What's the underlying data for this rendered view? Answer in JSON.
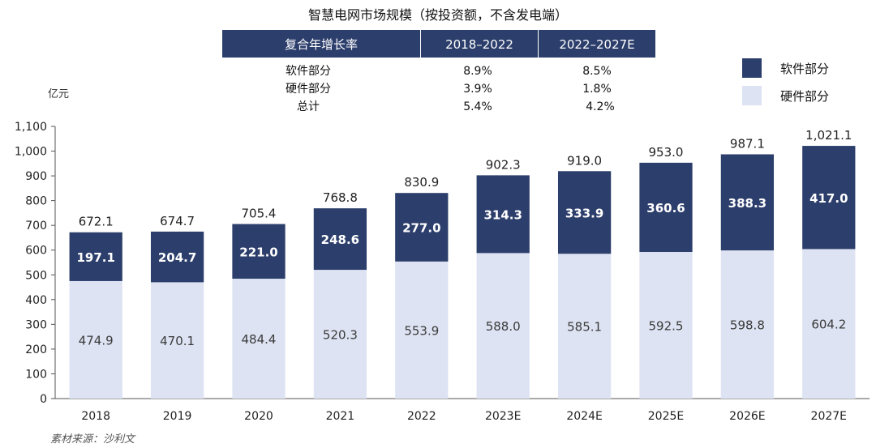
{
  "title": "智慧电网市场规模（按投资额，不含发电端）",
  "unit_label": "亿元",
  "source": "素材来源：沙利文",
  "growth_table": {
    "header": [
      "复合年增长率",
      "2018–2022",
      "2022–2027E"
    ],
    "rows": [
      {
        "label": "软件部分",
        "v1": "8.9%",
        "v2": "8.5%"
      },
      {
        "label": "硬件部分",
        "v1": "3.9%",
        "v2": "1.8%"
      },
      {
        "label": "总计",
        "v1": "5.4%",
        "v2": "4.2%"
      }
    ]
  },
  "colors": {
    "software": "#2c3e6b",
    "hardware": "#dde3f2",
    "table_header": "#2c3e6b",
    "axis": "#555555"
  },
  "chart_data": {
    "type": "bar",
    "stacked": true,
    "categories": [
      "2018",
      "2019",
      "2020",
      "2021",
      "2022",
      "2023E",
      "2024E",
      "2025E",
      "2026E",
      "2027E"
    ],
    "series": [
      {
        "name": "硬件部分",
        "values": [
          474.9,
          470.1,
          484.4,
          520.3,
          553.9,
          588.0,
          585.1,
          592.5,
          598.8,
          604.2
        ],
        "labels": [
          "474.9",
          "470.1",
          "484.4",
          "520.3",
          "553.9",
          "588.0",
          "585.1",
          "592.5",
          "598.8",
          "604.2"
        ]
      },
      {
        "name": "软件部分",
        "values": [
          197.1,
          204.7,
          221.0,
          248.6,
          277.0,
          314.3,
          333.9,
          360.6,
          388.3,
          417.0
        ],
        "labels": [
          "197.1",
          "204.7",
          "221.0",
          "248.6",
          "277.0",
          "314.3",
          "333.9",
          "360.6",
          "388.3",
          "417.0"
        ]
      }
    ],
    "totals": [
      672.1,
      674.7,
      705.4,
      768.8,
      830.9,
      902.3,
      919.0,
      953.0,
      987.1,
      1021.1
    ],
    "total_labels": [
      "672.1",
      "674.7",
      "705.4",
      "768.8",
      "830.9",
      "902.3",
      "919.0",
      "953.0",
      "987.1",
      "1,021.1"
    ],
    "ylim": [
      0,
      1100
    ],
    "yticks": [
      0,
      100,
      200,
      300,
      400,
      500,
      600,
      700,
      800,
      900,
      1000,
      1100
    ],
    "ytick_labels": [
      "0",
      "100",
      "200",
      "300",
      "400",
      "500",
      "600",
      "700",
      "800",
      "900",
      "1,000",
      "1,100"
    ],
    "legend": [
      "软件部分",
      "硬件部分"
    ],
    "legend_position": "top-right",
    "grid": false
  }
}
